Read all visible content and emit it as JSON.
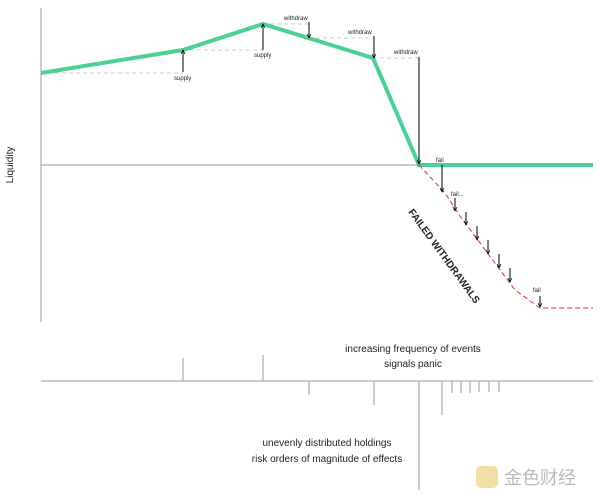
{
  "axis_label": "Liquidity",
  "events": [
    {
      "label": "supply"
    },
    {
      "label": "supply"
    },
    {
      "label": "withdraw"
    },
    {
      "label": "withdraw"
    },
    {
      "label": "withdraw"
    },
    {
      "label": "fail"
    },
    {
      "label": "fail..."
    },
    {
      "label": "fail"
    }
  ],
  "failed_label": "FAILED WITHDRAWALS",
  "notes": [
    "increasing frequency of events",
    "signals panic",
    "unevenly distributed holdings",
    "risk orders of magnitude of effects"
  ],
  "watermark": "金色财经"
}
